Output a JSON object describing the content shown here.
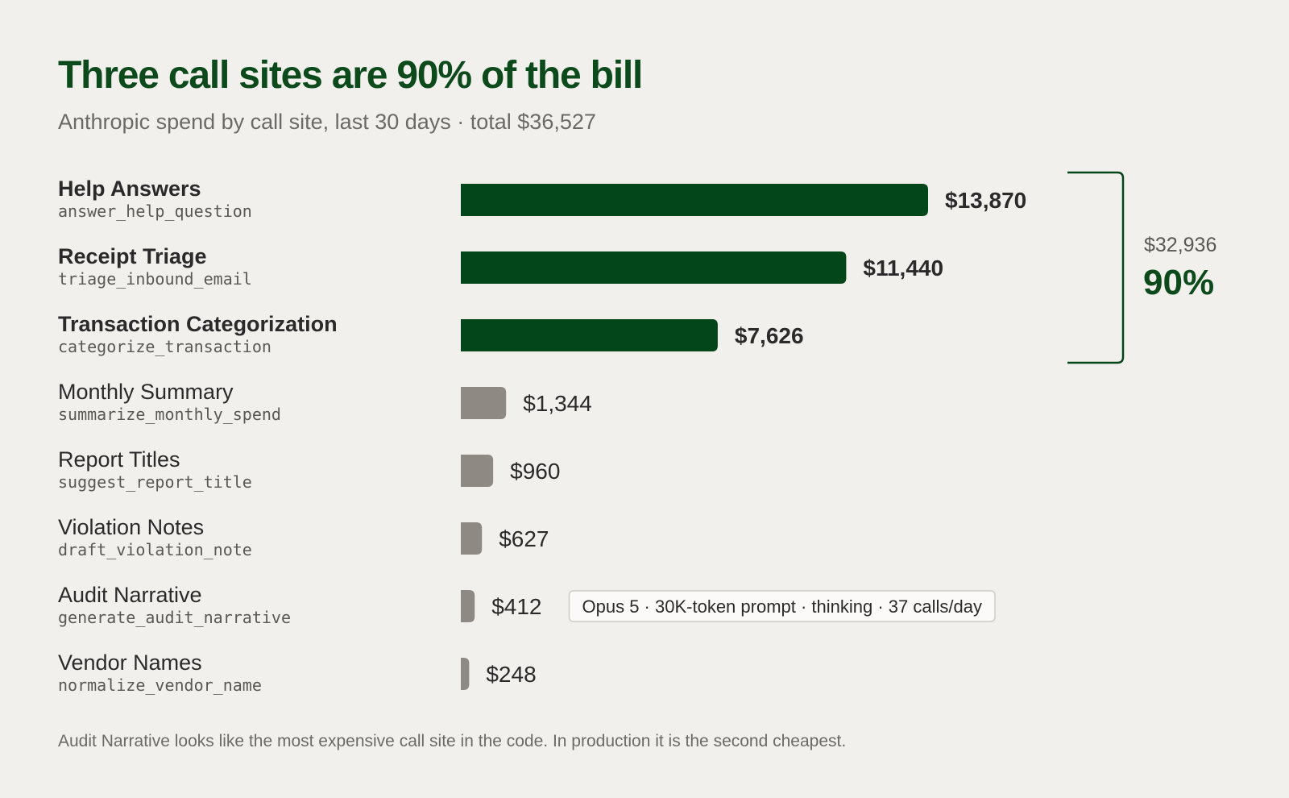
{
  "title": "Three call sites are 90% of the bill",
  "subtitle": "Anthropic spend by call site, last 30 days · total $36,527",
  "footnote": "Audit Narrative looks like the most expensive call site in the code. In production it is the second cheapest.",
  "colors": {
    "accent": "#03461a",
    "muted_bar": "#8e8982",
    "title": "#0c4a1c",
    "text": "#2a2a2a",
    "subtext": "#5a5853",
    "background": "#f1f0ec"
  },
  "chart_data": {
    "type": "bar",
    "orientation": "horizontal",
    "categories": [
      "Help Answers",
      "Receipt Triage",
      "Transaction Categorization",
      "Monthly Summary",
      "Report Titles",
      "Violation Notes",
      "Audit Narrative",
      "Vendor Names"
    ],
    "call_sites": [
      "answer_help_question",
      "triage_inbound_email",
      "categorize_transaction",
      "summarize_monthly_spend",
      "suggest_report_title",
      "draft_violation_note",
      "generate_audit_narrative",
      "normalize_vendor_name"
    ],
    "values": [
      13870,
      11440,
      7626,
      1344,
      960,
      627,
      412,
      248
    ],
    "value_labels": [
      "$13,870",
      "$11,440",
      "$7,626",
      "$1,344",
      "$960",
      "$627",
      "$412",
      "$248"
    ],
    "highlighted": [
      true,
      true,
      true,
      false,
      false,
      false,
      false,
      false
    ],
    "xlim": [
      0,
      13870
    ],
    "grid": false,
    "legend": "none",
    "annotations": [
      {
        "category": "Audit Narrative",
        "text": "Opus 5 · 30K-token prompt · thinking · 37 calls/day"
      }
    ],
    "bracket": {
      "covers": [
        "Help Answers",
        "Receipt Triage",
        "Transaction Categorization"
      ],
      "value_label": "$32,936",
      "percent_label": "90%"
    }
  }
}
